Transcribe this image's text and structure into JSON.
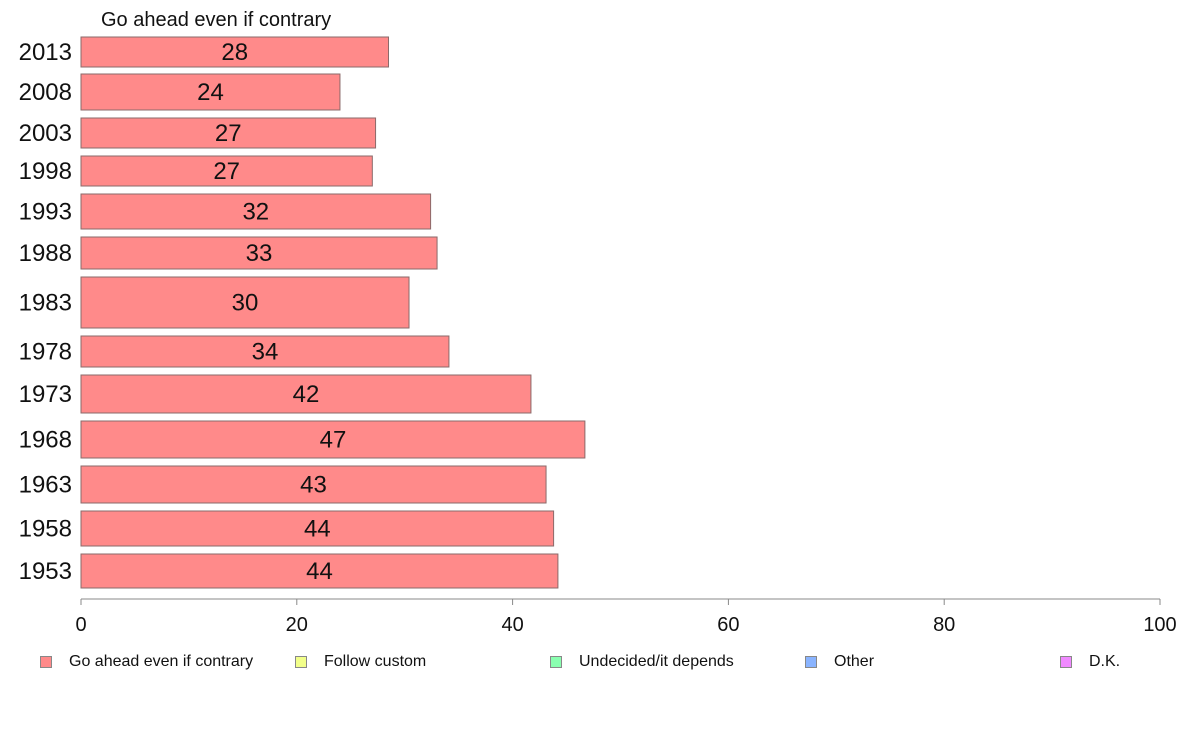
{
  "chart_data": {
    "type": "bar",
    "orientation": "horizontal",
    "title": "Go ahead even if contrary",
    "categories": [
      "2013",
      "2008",
      "2003",
      "1998",
      "1993",
      "1988",
      "1983",
      "1978",
      "1973",
      "1968",
      "1963",
      "1958",
      "1953"
    ],
    "series": [
      {
        "name": "Go ahead even if contrary",
        "color": "#ff8a8a",
        "values": [
          28.5,
          24,
          27.3,
          27,
          32.4,
          33,
          30.4,
          34.1,
          41.7,
          46.7,
          43.1,
          43.8,
          44.2
        ],
        "labels": [
          "28",
          "24",
          "27",
          "27",
          "32",
          "33",
          "30",
          "34",
          "42",
          "47",
          "43",
          "44",
          "44"
        ]
      }
    ],
    "xlim": [
      0,
      100
    ],
    "xticks": [
      "0",
      "20",
      "40",
      "60",
      "80",
      "100"
    ],
    "legend": {
      "placement": "bottom",
      "items": [
        {
          "label": "Go ahead even if contrary",
          "color": "#ff8a8a"
        },
        {
          "label": "Follow custom",
          "color": "#f2ff8a"
        },
        {
          "label": "Undecided/it depends",
          "color": "#8affb0"
        },
        {
          "label": "Other",
          "color": "#8ab4ff"
        },
        {
          "label": "D.K.",
          "color": "#f08aff"
        }
      ]
    }
  }
}
